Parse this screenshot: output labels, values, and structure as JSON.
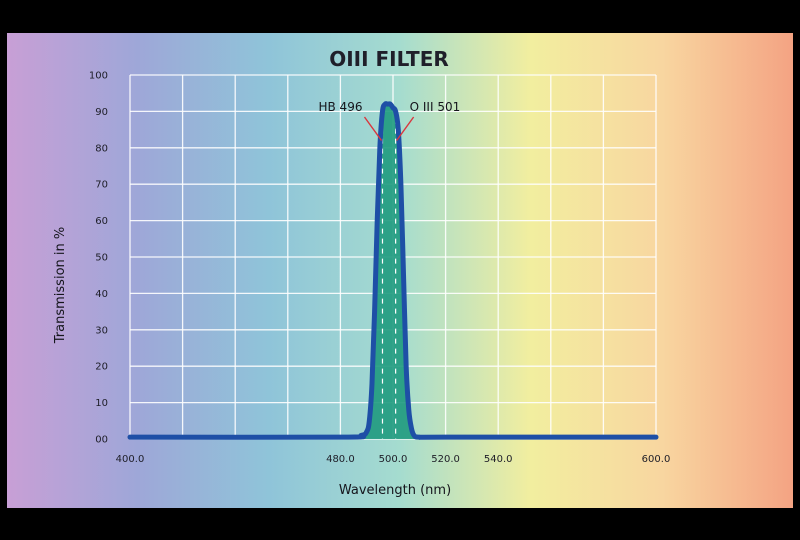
{
  "chart_data": {
    "type": "area",
    "title": "OIII FILTER",
    "xlabel": "Wavelength (nm)",
    "ylabel": "Transmission in %",
    "xlim": [
      400,
      600
    ],
    "ylim": [
      0,
      100
    ],
    "grid": true,
    "x_ticks": [
      {
        "value": 400,
        "label": "400.0"
      },
      {
        "value": 480,
        "label": "480.0"
      },
      {
        "value": 500,
        "label": "500.0"
      },
      {
        "value": 520,
        "label": "520.0"
      },
      {
        "value": 540,
        "label": "540.0"
      },
      {
        "value": 600,
        "label": "600.0"
      }
    ],
    "y_ticks": [
      {
        "value": 0,
        "label": "00"
      },
      {
        "value": 10,
        "label": "10"
      },
      {
        "value": 20,
        "label": "20"
      },
      {
        "value": 30,
        "label": "30"
      },
      {
        "value": 40,
        "label": "40"
      },
      {
        "value": 50,
        "label": "50"
      },
      {
        "value": 60,
        "label": "60"
      },
      {
        "value": 70,
        "label": "70"
      },
      {
        "value": 80,
        "label": "80"
      },
      {
        "value": 90,
        "label": "90"
      },
      {
        "value": 100,
        "label": "100"
      }
    ],
    "series": [
      {
        "x": [
          400,
          480,
          488,
          490,
          491,
          492,
          493,
          494,
          495,
          496,
          497,
          498,
          499,
          500,
          501,
          502,
          503,
          504,
          505,
          506,
          507,
          508,
          510,
          520,
          600
        ],
        "y": [
          0.5,
          0.5,
          1,
          2,
          5,
          15,
          35,
          60,
          80,
          90,
          92,
          92,
          92,
          91,
          90,
          85,
          70,
          45,
          20,
          8,
          3,
          1,
          0.5,
          0.5,
          0.5
        ],
        "color": "#1e4fa6",
        "fill": "#1f9a7e"
      }
    ],
    "annotations": [
      {
        "text": "HB 496",
        "x": 496,
        "y": 92
      },
      {
        "text": "O III 501",
        "x": 501,
        "y": 92
      }
    ],
    "background_gradient": [
      "#c89fd6",
      "#9ea7d8",
      "#8fc4d9",
      "#a5dccf",
      "#f2ee9f",
      "#f8d6a0",
      "#f4a383"
    ]
  }
}
